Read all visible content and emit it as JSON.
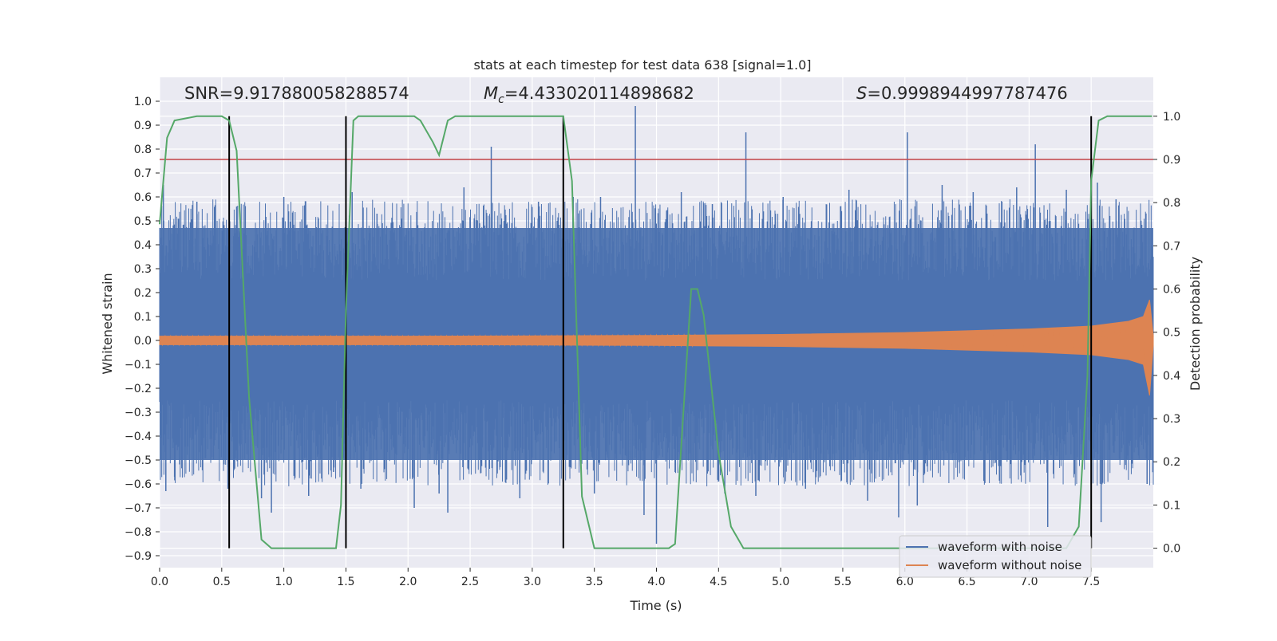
{
  "chart_data": {
    "type": "line",
    "title": "stats at each timestep for test data 638 [signal=1.0]",
    "xlabel": "Time (s)",
    "ylabel": "Whitened strain",
    "y2label": "Detection probability",
    "xlim": [
      0.0,
      8.0
    ],
    "ylim": [
      -0.95,
      1.1
    ],
    "y2lim": [
      -0.045,
      1.09
    ],
    "xticks": [
      "0.0",
      "0.5",
      "1.0",
      "1.5",
      "2.0",
      "2.5",
      "3.0",
      "3.5",
      "4.0",
      "4.5",
      "5.0",
      "5.5",
      "6.0",
      "6.5",
      "7.0",
      "7.5"
    ],
    "yticks": [
      "1.0",
      "0.9",
      "0.8",
      "0.7",
      "0.6",
      "0.5",
      "0.4",
      "0.3",
      "0.2",
      "0.1",
      "0.0",
      "−0.1",
      "−0.2",
      "−0.3",
      "−0.4",
      "−0.5",
      "−0.6",
      "−0.7",
      "−0.8",
      "−0.9"
    ],
    "y2ticks": [
      "1.0",
      "0.9",
      "0.8",
      "0.7",
      "0.6",
      "0.5",
      "0.4",
      "0.3",
      "0.2",
      "0.1",
      "0.0"
    ],
    "grid": true,
    "legend_position": "lower-right",
    "annotations": {
      "snr": "SNR=9.917880058288574",
      "mc_symbol": "M",
      "mc_subscript": "c",
      "mc_value": "=4.433020114898682",
      "s_symbol": "S",
      "s_value": "=0.9998944997787476"
    },
    "series": [
      {
        "name": "waveform with noise",
        "color": "#4c72b0",
        "axis": "left",
        "envelope": {
          "x": [
            0.0,
            8.0
          ],
          "upper": [
            0.47,
            0.47
          ],
          "lower": [
            -0.5,
            -0.5
          ]
        },
        "spikes": [
          {
            "x": 0.03,
            "y": 0.65
          },
          {
            "x": 0.05,
            "y": -0.63
          },
          {
            "x": 0.12,
            "y": -0.57
          },
          {
            "x": 0.3,
            "y": 0.58
          },
          {
            "x": 0.55,
            "y": -0.62
          },
          {
            "x": 0.62,
            "y": 0.56
          },
          {
            "x": 0.82,
            "y": -0.66
          },
          {
            "x": 0.9,
            "y": -0.72
          },
          {
            "x": 1.0,
            "y": 0.6
          },
          {
            "x": 1.2,
            "y": -0.65
          },
          {
            "x": 1.4,
            "y": -0.55
          },
          {
            "x": 1.55,
            "y": 0.62
          },
          {
            "x": 1.62,
            "y": -0.62
          },
          {
            "x": 1.75,
            "y": 0.53
          },
          {
            "x": 2.05,
            "y": -0.7
          },
          {
            "x": 2.25,
            "y": -0.64
          },
          {
            "x": 2.32,
            "y": -0.72
          },
          {
            "x": 2.45,
            "y": 0.64
          },
          {
            "x": 2.67,
            "y": 0.81
          },
          {
            "x": 2.9,
            "y": -0.66
          },
          {
            "x": 3.05,
            "y": 0.58
          },
          {
            "x": 3.33,
            "y": 0.6
          },
          {
            "x": 3.5,
            "y": -0.64
          },
          {
            "x": 3.55,
            "y": 0.6
          },
          {
            "x": 3.83,
            "y": 0.98
          },
          {
            "x": 3.9,
            "y": -0.73
          },
          {
            "x": 4.0,
            "y": -0.85
          },
          {
            "x": 4.2,
            "y": 0.62
          },
          {
            "x": 4.45,
            "y": 0.57
          },
          {
            "x": 4.55,
            "y": -0.64
          },
          {
            "x": 4.72,
            "y": 0.87
          },
          {
            "x": 4.8,
            "y": -0.65
          },
          {
            "x": 5.02,
            "y": 0.6
          },
          {
            "x": 5.2,
            "y": -0.62
          },
          {
            "x": 5.55,
            "y": 0.63
          },
          {
            "x": 5.7,
            "y": -0.67
          },
          {
            "x": 5.95,
            "y": -0.74
          },
          {
            "x": 6.02,
            "y": 0.87
          },
          {
            "x": 6.1,
            "y": -0.69
          },
          {
            "x": 6.3,
            "y": 0.65
          },
          {
            "x": 6.55,
            "y": 0.62
          },
          {
            "x": 6.9,
            "y": 0.64
          },
          {
            "x": 7.05,
            "y": 0.82
          },
          {
            "x": 7.15,
            "y": -0.78
          },
          {
            "x": 7.3,
            "y": 0.63
          },
          {
            "x": 7.55,
            "y": 0.66
          },
          {
            "x": 7.58,
            "y": -0.76
          },
          {
            "x": 7.7,
            "y": 0.59
          },
          {
            "x": 7.95,
            "y": -0.6
          }
        ]
      },
      {
        "name": "waveform without noise",
        "color": "#dd8452",
        "axis": "left",
        "envelope": {
          "x": [
            0.0,
            1.0,
            2.0,
            3.0,
            4.0,
            5.0,
            6.0,
            7.0,
            7.5,
            7.8,
            7.92,
            7.97,
            8.0
          ],
          "upper": [
            0.018,
            0.018,
            0.018,
            0.019,
            0.021,
            0.025,
            0.033,
            0.048,
            0.06,
            0.08,
            0.1,
            0.17,
            0.02
          ],
          "lower": [
            -0.018,
            -0.018,
            -0.018,
            -0.019,
            -0.021,
            -0.025,
            -0.033,
            -0.048,
            -0.06,
            -0.08,
            -0.1,
            -0.23,
            -0.02
          ]
        }
      },
      {
        "name": "detection probability",
        "color": "#55a868",
        "axis": "right",
        "x": [
          0.0,
          0.06,
          0.12,
          0.3,
          0.5,
          0.56,
          0.62,
          0.72,
          0.82,
          0.9,
          1.0,
          1.42,
          1.46,
          1.5,
          1.56,
          1.6,
          2.05,
          2.1,
          2.2,
          2.25,
          2.32,
          2.38,
          3.25,
          3.32,
          3.4,
          3.5,
          3.6,
          4.1,
          4.15,
          4.22,
          4.28,
          4.3,
          4.33,
          4.38,
          4.5,
          4.6,
          4.7,
          5.0,
          5.5,
          7.0,
          7.3,
          7.4,
          7.47,
          7.5,
          7.56,
          7.63,
          7.7,
          7.99
        ],
        "y": [
          0.75,
          0.95,
          0.99,
          1.0,
          1.0,
          0.99,
          0.92,
          0.35,
          0.02,
          0.0,
          0.0,
          0.0,
          0.1,
          0.55,
          0.99,
          1.0,
          1.0,
          0.99,
          0.94,
          0.91,
          0.99,
          1.0,
          1.0,
          0.85,
          0.12,
          0.0,
          0.0,
          0.0,
          0.01,
          0.33,
          0.6,
          0.6,
          0.6,
          0.54,
          0.22,
          0.05,
          0.0,
          0.0,
          0.0,
          0.0,
          0.0,
          0.05,
          0.4,
          0.85,
          0.99,
          1.0,
          1.0,
          1.0
        ]
      },
      {
        "name": "threshold",
        "color": "#c44e52",
        "axis": "right",
        "y": 0.9
      }
    ],
    "vertical_markers": {
      "color": "#000000",
      "x": [
        0.56,
        1.5,
        3.25,
        7.5
      ],
      "ymin": 0.0,
      "ymax": 1.0
    },
    "legend": [
      "waveform with noise",
      "waveform without noise"
    ]
  }
}
